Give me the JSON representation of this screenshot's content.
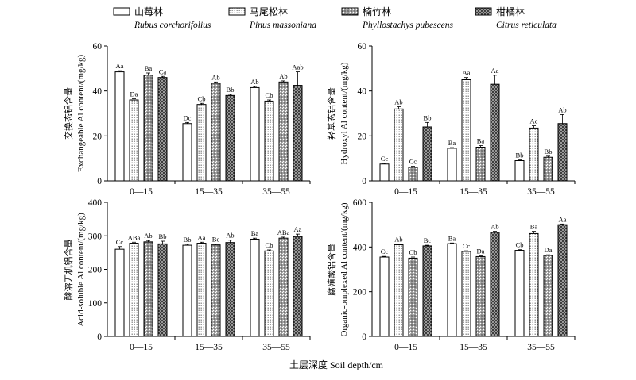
{
  "legend": [
    {
      "cn": "山莓林",
      "latin": "Rubus corchorifolius",
      "pattern": "blank"
    },
    {
      "cn": "马尾松林",
      "latin": "Pinus massoniana",
      "pattern": "dots"
    },
    {
      "cn": "楠竹林",
      "latin": "Phyllostachys pubescens",
      "pattern": "grid"
    },
    {
      "cn": "柑橘林",
      "latin": "Citrus reticulata",
      "pattern": "cross"
    }
  ],
  "x_title": {
    "cn": "土层深度",
    "en": "Soil depth/cm"
  },
  "chart_data": [
    {
      "type": "bar",
      "categories": [
        "0—15",
        "15—35",
        "35—55"
      ],
      "ylabel_cn": "交换态铝含量",
      "ylabel_en": "Exchangeable Al content/(mg/kg)",
      "ylim": [
        0,
        60
      ],
      "yticks": [
        0,
        20,
        40,
        60
      ],
      "series": [
        {
          "name": "山莓林",
          "values": [
            48.5,
            25.5,
            41.5
          ],
          "errors": [
            0.5,
            0.5,
            0.5
          ],
          "labels": [
            "Aa",
            "Dc",
            "Ab"
          ]
        },
        {
          "name": "马尾松林",
          "values": [
            36,
            34,
            35.5
          ],
          "errors": [
            0.5,
            0.5,
            0.5
          ],
          "labels": [
            "Da",
            "Cb",
            "Cb"
          ]
        },
        {
          "name": "楠竹林",
          "values": [
            47,
            43.5,
            44
          ],
          "errors": [
            1,
            0.5,
            0.5
          ],
          "labels": [
            "Ba",
            "Ab",
            "Ab"
          ]
        },
        {
          "name": "柑橘林",
          "values": [
            46,
            38,
            42.5
          ],
          "errors": [
            0.5,
            0.5,
            6
          ],
          "labels": [
            "Ca",
            "Bb",
            "Aab"
          ]
        }
      ]
    },
    {
      "type": "bar",
      "categories": [
        "0—15",
        "15—35",
        "35—55"
      ],
      "ylabel_cn": "羟基态铝含量",
      "ylabel_en": "Hydroxyl Al content/(mg/kg)",
      "ylim": [
        0,
        60
      ],
      "yticks": [
        0,
        20,
        40,
        60
      ],
      "series": [
        {
          "name": "山莓林",
          "values": [
            7.5,
            14.5,
            9
          ],
          "errors": [
            0.3,
            0.3,
            0.3
          ],
          "labels": [
            "Cc",
            "Ba",
            "Bb"
          ]
        },
        {
          "name": "马尾松林",
          "values": [
            32,
            45,
            23.5
          ],
          "errors": [
            1,
            1,
            1
          ],
          "labels": [
            "Ab",
            "Aa",
            "Ac"
          ]
        },
        {
          "name": "楠竹林",
          "values": [
            6,
            15,
            10.5
          ],
          "errors": [
            0.5,
            0.7,
            0.5
          ],
          "labels": [
            "Cc",
            "Ba",
            "Bb"
          ]
        },
        {
          "name": "柑橘林",
          "values": [
            24,
            43,
            25.5
          ],
          "errors": [
            2,
            4,
            4
          ],
          "labels": [
            "Bb",
            "Aa",
            "Ab"
          ]
        }
      ]
    },
    {
      "type": "bar",
      "categories": [
        "0—15",
        "15—35",
        "35—55"
      ],
      "ylabel_cn": "酸溶无机铝含量",
      "ylabel_en": "Acid-soluble Al content/(mg/kg)",
      "ylim": [
        0,
        400
      ],
      "yticks": [
        0,
        100,
        200,
        300,
        400
      ],
      "series": [
        {
          "name": "山莓林",
          "values": [
            260,
            272,
            290
          ],
          "errors": [
            8,
            3,
            3
          ],
          "labels": [
            "Cc",
            "Bb",
            "Ba"
          ]
        },
        {
          "name": "马尾松林",
          "values": [
            278,
            278,
            255
          ],
          "errors": [
            3,
            3,
            3
          ],
          "labels": [
            "ABa",
            "Aa",
            "Cb"
          ]
        },
        {
          "name": "楠竹林",
          "values": [
            282,
            273,
            293
          ],
          "errors": [
            4,
            3,
            3
          ],
          "labels": [
            "Ab",
            "Bc",
            "ABa"
          ]
        },
        {
          "name": "柑橘林",
          "values": [
            276,
            280,
            298
          ],
          "errors": [
            8,
            7,
            7
          ],
          "labels": [
            "Bb",
            "Ab",
            "Aa"
          ]
        }
      ]
    },
    {
      "type": "bar",
      "categories": [
        "0—15",
        "15—35",
        "35—55"
      ],
      "ylabel_cn": "腐殖酸铝含量",
      "ylabel_en": "Organic-omplexed Al content/(mg/kg)",
      "ylim": [
        0,
        600
      ],
      "yticks": [
        0,
        200,
        400,
        600
      ],
      "series": [
        {
          "name": "山莓林",
          "values": [
            355,
            415,
            385
          ],
          "errors": [
            3,
            3,
            3
          ],
          "labels": [
            "Cc",
            "Ba",
            "Cb"
          ]
        },
        {
          "name": "马尾松林",
          "values": [
            410,
            380,
            460
          ],
          "errors": [
            3,
            3,
            10
          ],
          "labels": [
            "Ab",
            "Cc",
            "Ba"
          ]
        },
        {
          "name": "楠竹林",
          "values": [
            350,
            357,
            362
          ],
          "errors": [
            5,
            3,
            3
          ],
          "labels": [
            "Cb",
            "Da",
            "Da"
          ]
        },
        {
          "name": "柑橘林",
          "values": [
            405,
            465,
            500
          ],
          "errors": [
            3,
            5,
            3
          ],
          "labels": [
            "Bc",
            "Ab",
            "Aa"
          ]
        }
      ]
    }
  ]
}
